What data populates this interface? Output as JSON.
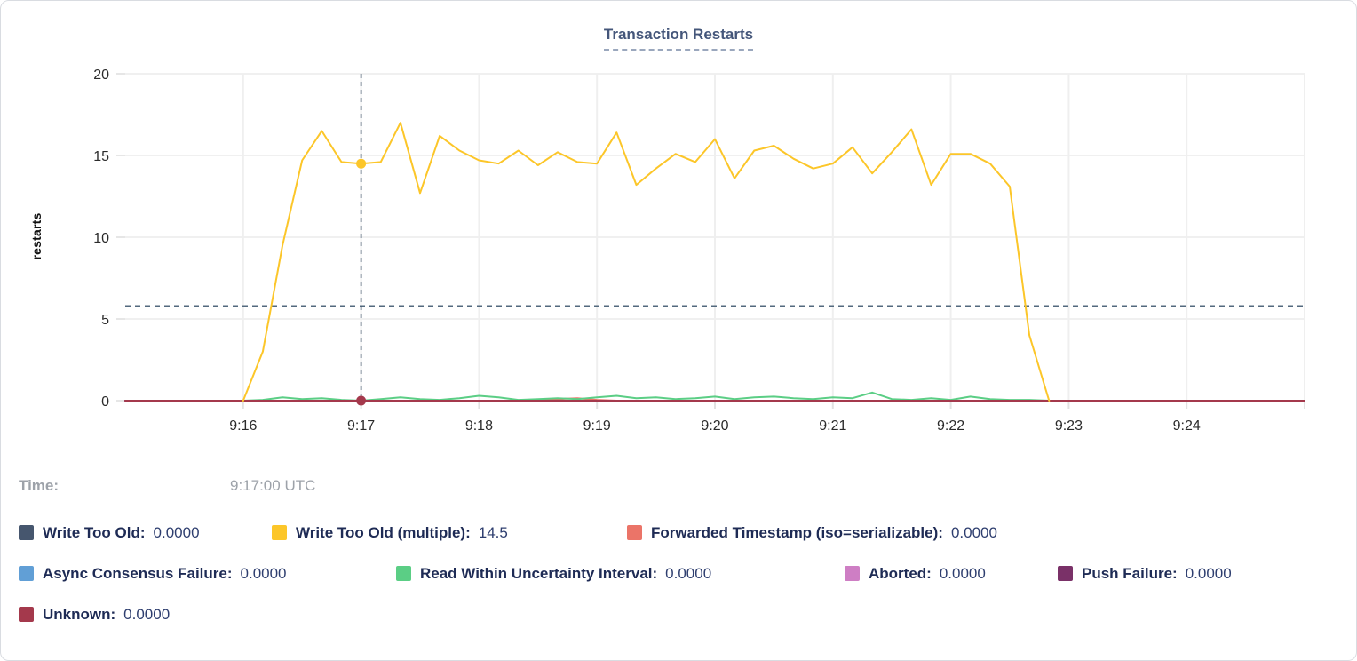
{
  "chart_data": {
    "type": "line",
    "title": "Transaction Restarts",
    "xlabel": "",
    "ylabel": "restarts",
    "ylim": [
      0,
      20
    ],
    "y_ticks": [
      0,
      5,
      10,
      15,
      20
    ],
    "grid": true,
    "legend_position": "bottom",
    "x_domain_s": [
      0,
      600
    ],
    "x_ticks": [
      {
        "s": 60,
        "label": "9:16"
      },
      {
        "s": 120,
        "label": "9:17"
      },
      {
        "s": 180,
        "label": "9:18"
      },
      {
        "s": 240,
        "label": "9:19"
      },
      {
        "s": 300,
        "label": "9:20"
      },
      {
        "s": 360,
        "label": "9:21"
      },
      {
        "s": 420,
        "label": "9:22"
      },
      {
        "s": 480,
        "label": "9:23"
      },
      {
        "s": 540,
        "label": "9:24"
      },
      {
        "s": 600,
        "label": ""
      }
    ],
    "crosshair": {
      "time": "9:17:00 UTC",
      "x_s": 120,
      "hline_value": 5.8,
      "highlight_points": [
        {
          "series": "Write Too Old (multiple)",
          "value": 14.5,
          "color": "#FCC629"
        },
        {
          "series": "Unknown",
          "value": 0,
          "color": "#A4394C"
        }
      ]
    },
    "series": [
      {
        "name": "Write Too Old",
        "color": "#46566E",
        "mode": "flat",
        "flat_value": 0,
        "from_s": 0,
        "to_s": 600
      },
      {
        "name": "Async Consensus Failure",
        "color": "#619FD6",
        "mode": "flat",
        "flat_value": 0,
        "from_s": 0,
        "to_s": 600
      },
      {
        "name": "Aborted",
        "color": "#CE7EC4",
        "mode": "flat",
        "flat_value": 0,
        "from_s": 0,
        "to_s": 600
      },
      {
        "name": "Push Failure",
        "color": "#7A3168",
        "mode": "flat",
        "flat_value": 0,
        "from_s": 0,
        "to_s": 600
      },
      {
        "name": "Forwarded Timestamp (iso=serializable)",
        "color": "#EB7468",
        "mode": "points",
        "start_s": 60,
        "step_s": 10,
        "values": [
          0,
          0,
          0,
          0,
          0,
          0,
          0,
          0,
          0,
          0,
          0,
          0,
          0,
          0,
          0,
          0,
          0.1,
          0.15,
          0.05,
          0,
          0,
          0,
          0,
          0,
          0,
          0,
          0,
          0,
          0,
          0,
          0,
          0,
          0,
          0,
          0,
          0,
          0,
          0,
          0,
          0,
          0,
          0
        ]
      },
      {
        "name": "Read Within Uncertainty Interval",
        "color": "#5BCE85",
        "mode": "points",
        "start_s": 60,
        "step_s": 10,
        "values": [
          0,
          0.05,
          0.2,
          0.1,
          0.15,
          0.05,
          0,
          0.1,
          0.2,
          0.1,
          0.05,
          0.15,
          0.3,
          0.2,
          0.05,
          0.1,
          0.15,
          0.1,
          0.2,
          0.3,
          0.15,
          0.2,
          0.1,
          0.15,
          0.25,
          0.1,
          0.2,
          0.25,
          0.15,
          0.1,
          0.2,
          0.15,
          0.5,
          0.1,
          0.05,
          0.15,
          0.05,
          0.25,
          0.1,
          0.05,
          0.05,
          0
        ]
      },
      {
        "name": "Unknown",
        "color": "#A4394C",
        "mode": "flat",
        "flat_value": 0,
        "from_s": 0,
        "to_s": 600
      },
      {
        "name": "Write Too Old (multiple)",
        "color": "#FCC629",
        "mode": "points",
        "start_s": 60,
        "step_s": 10,
        "values": [
          0,
          3,
          9.5,
          14.7,
          16.5,
          14.6,
          14.5,
          14.6,
          17,
          12.7,
          16.2,
          15.3,
          14.7,
          14.5,
          15.3,
          14.4,
          15.2,
          14.6,
          14.5,
          16.4,
          13.2,
          14.2,
          15.1,
          14.6,
          16,
          13.6,
          15.3,
          15.6,
          14.8,
          14.2,
          14.5,
          15.5,
          13.9,
          15.2,
          16.6,
          13.2,
          15.1,
          15.1,
          14.5,
          13.1,
          4,
          0
        ]
      }
    ]
  },
  "tooltip": {
    "time_label": "Time:",
    "time_value": "9:17:00 UTC"
  },
  "legend": {
    "rows": [
      [
        {
          "label": "Write Too Old:",
          "value": "0.0000",
          "color": "#46566E"
        },
        {
          "label": "Write Too Old (multiple):",
          "value": "14.5",
          "color": "#FCC629"
        },
        {
          "label": "Forwarded Timestamp (iso=serializable):",
          "value": "0.0000",
          "color": "#EB7468"
        }
      ],
      [
        {
          "label": "Async Consensus Failure:",
          "value": "0.0000",
          "color": "#619FD6"
        },
        {
          "label": "Read Within Uncertainty Interval:",
          "value": "0.0000",
          "color": "#5BCE85"
        },
        {
          "label": "Aborted:",
          "value": "0.0000",
          "color": "#CE7EC4"
        },
        {
          "label": "Push Failure:",
          "value": "0.0000",
          "color": "#7A3168"
        }
      ],
      [
        {
          "label": "Unknown:",
          "value": "0.0000",
          "color": "#A4394C"
        }
      ]
    ]
  }
}
